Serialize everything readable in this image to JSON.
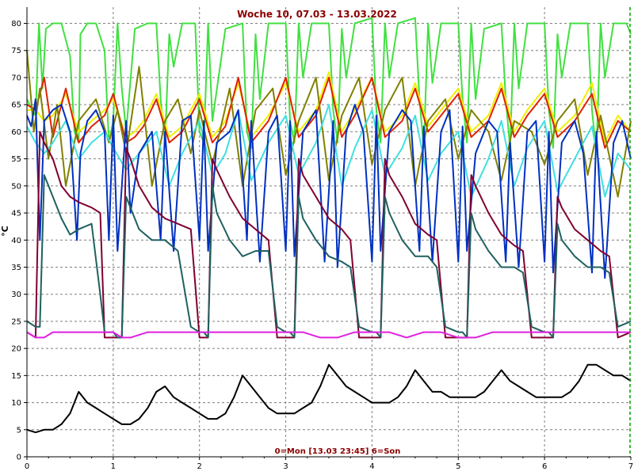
{
  "chart_data": {
    "type": "line",
    "title": "Woche 10, 07.03 - 13.03.2022",
    "footer": "0=Mon [13.03 23:45] 6=Son",
    "ylabel": "°C",
    "xlabel": "",
    "xlim": [
      0,
      7
    ],
    "ylim": [
      0,
      83
    ],
    "x_ticks": [
      "0",
      "1",
      "2",
      "3",
      "4",
      "5",
      "6",
      "7"
    ],
    "y_ticks": [
      "0",
      "5",
      "10",
      "15",
      "20",
      "25",
      "30",
      "35",
      "40",
      "45",
      "50",
      "55",
      "60",
      "65",
      "70",
      "75",
      "80"
    ],
    "grid": true,
    "colors": {
      "title": "#8b0000",
      "axis": "#000000",
      "grid": "#7f7f7f",
      "end_marker": "#00a000"
    },
    "series": [
      {
        "color": "#40e040",
        "x": [
          0,
          0.03,
          0.06,
          0.1,
          0.14,
          0.18,
          0.22,
          0.3,
          0.4,
          0.5,
          0.55,
          0.6,
          0.62,
          0.7,
          0.8,
          0.9,
          0.95,
          1.0,
          1.05,
          1.1,
          1.15,
          1.25,
          1.4,
          1.5,
          1.55,
          1.6,
          1.65,
          1.7,
          1.8,
          1.95,
          2.0,
          2.05,
          2.1,
          2.15,
          2.3,
          2.5,
          2.55,
          2.6,
          2.65,
          2.7,
          2.8,
          3.0,
          3.05,
          3.1,
          3.15,
          3.2,
          3.3,
          3.5,
          3.55,
          3.6,
          3.65,
          3.7,
          3.8,
          4.0,
          4.05,
          4.1,
          4.15,
          4.2,
          4.3,
          4.5,
          4.55,
          4.6,
          4.65,
          4.7,
          4.8,
          5.0,
          5.05,
          5.1,
          5.15,
          5.2,
          5.3,
          5.5,
          5.55,
          5.6,
          5.65,
          5.7,
          5.8,
          6.0,
          6.05,
          6.1,
          6.15,
          6.2,
          6.3,
          6.5,
          6.55,
          6.6,
          6.65,
          6.7,
          6.8,
          6.95,
          7.0
        ],
        "y": [
          66,
          65,
          64,
          63,
          80,
          68,
          79,
          80,
          80,
          74,
          60,
          58,
          78,
          80,
          80,
          75,
          58,
          62,
          80,
          68,
          60,
          79,
          80,
          80,
          66,
          58,
          78,
          72,
          80,
          80,
          60,
          58,
          80,
          62,
          79,
          80,
          60,
          57,
          78,
          66,
          80,
          80,
          62,
          58,
          80,
          70,
          80,
          80,
          64,
          58,
          79,
          70,
          80,
          81,
          64,
          58,
          80,
          70,
          80,
          81,
          66,
          57,
          80,
          69,
          80,
          80,
          66,
          58,
          80,
          66,
          79,
          80,
          66,
          57,
          80,
          68,
          80,
          80,
          64,
          57,
          78,
          70,
          80,
          80,
          64,
          56,
          80,
          70,
          80,
          80,
          78
        ]
      },
      {
        "color": "#f0f000",
        "x": [
          0,
          0.1,
          0.2,
          0.3,
          0.45,
          0.6,
          0.75,
          0.9,
          1.0,
          1.15,
          1.25,
          1.35,
          1.5,
          1.65,
          1.8,
          2.0,
          2.15,
          2.3,
          2.45,
          2.6,
          2.8,
          3.0,
          3.15,
          3.35,
          3.5,
          3.65,
          3.8,
          4.0,
          4.15,
          4.35,
          4.5,
          4.65,
          4.8,
          5.0,
          5.15,
          5.35,
          5.5,
          5.65,
          5.8,
          6.0,
          6.15,
          6.35,
          6.55,
          6.7,
          6.85,
          7.0
        ],
        "y": [
          64,
          64,
          62,
          63,
          67,
          60,
          62,
          64,
          66,
          59,
          60,
          62,
          67,
          59,
          61,
          67,
          59,
          62,
          69,
          59,
          63,
          69,
          60,
          64,
          71,
          60,
          64,
          70,
          60,
          63,
          69,
          61,
          64,
          68,
          60,
          63,
          69,
          60,
          64,
          68,
          60,
          63,
          69,
          58,
          63,
          60
        ]
      },
      {
        "color": "#e02000",
        "x": [
          0,
          0.1,
          0.2,
          0.3,
          0.45,
          0.6,
          0.75,
          0.9,
          1.0,
          1.15,
          1.25,
          1.35,
          1.5,
          1.65,
          1.8,
          2.0,
          2.15,
          2.3,
          2.45,
          2.6,
          2.8,
          3.0,
          3.15,
          3.35,
          3.5,
          3.65,
          3.8,
          4.0,
          4.15,
          4.35,
          4.5,
          4.65,
          4.8,
          5.0,
          5.15,
          5.35,
          5.5,
          5.65,
          5.8,
          6.0,
          6.15,
          6.35,
          6.55,
          6.7,
          6.85,
          7.0
        ],
        "y": [
          65,
          64,
          70,
          59,
          68,
          58,
          61,
          63,
          67,
          58,
          59,
          61,
          66,
          58,
          60,
          66,
          58,
          61,
          70,
          58,
          62,
          70,
          59,
          63,
          70,
          59,
          63,
          70,
          59,
          62,
          68,
          60,
          63,
          67,
          59,
          62,
          68,
          59,
          63,
          67,
          59,
          62,
          67,
          57,
          62,
          60
        ]
      },
      {
        "color": "#808000",
        "x": [
          0,
          0.08,
          0.15,
          0.25,
          0.35,
          0.45,
          0.6,
          0.8,
          0.95,
          1.05,
          1.15,
          1.3,
          1.45,
          1.6,
          1.75,
          1.9,
          2.0,
          2.15,
          2.35,
          2.5,
          2.65,
          2.85,
          3.0,
          3.15,
          3.35,
          3.5,
          3.65,
          3.85,
          4.0,
          4.15,
          4.35,
          4.5,
          4.65,
          4.85,
          5.0,
          5.15,
          5.35,
          5.5,
          5.65,
          5.85,
          6.0,
          6.15,
          6.35,
          6.5,
          6.65,
          6.85,
          7.0
        ],
        "y": [
          75,
          60,
          68,
          55,
          65,
          50,
          62,
          66,
          58,
          64,
          56,
          72,
          50,
          62,
          66,
          56,
          64,
          54,
          68,
          50,
          64,
          68,
          52,
          62,
          70,
          51,
          63,
          70,
          54,
          64,
          70,
          50,
          62,
          66,
          55,
          64,
          60,
          51,
          62,
          60,
          54,
          62,
          66,
          52,
          63,
          48,
          62
        ]
      },
      {
        "color": "#40e0e0",
        "x": [
          0,
          0.1,
          0.2,
          0.3,
          0.45,
          0.6,
          0.75,
          0.9,
          1.0,
          1.15,
          1.25,
          1.35,
          1.5,
          1.65,
          1.8,
          2.0,
          2.15,
          2.3,
          2.45,
          2.6,
          2.8,
          3.0,
          3.15,
          3.35,
          3.5,
          3.65,
          3.8,
          4.0,
          4.15,
          4.35,
          4.5,
          4.65,
          4.8,
          5.0,
          5.15,
          5.35,
          5.5,
          5.65,
          5.8,
          6.0,
          6.15,
          6.35,
          6.55,
          6.7,
          6.85,
          7.0
        ],
        "y": [
          61,
          58,
          56,
          58,
          62,
          55,
          58,
          60,
          57,
          53,
          55,
          57,
          60,
          50,
          56,
          62,
          52,
          56,
          64,
          51,
          58,
          63,
          52,
          58,
          65,
          50,
          57,
          64,
          52,
          57,
          63,
          51,
          56,
          60,
          48,
          55,
          62,
          50,
          57,
          62,
          49,
          55,
          61,
          48,
          56,
          53
        ]
      },
      {
        "color": "#0030c0",
        "x": [
          0,
          0.05,
          0.1,
          0.15,
          0.2,
          0.3,
          0.4,
          0.5,
          0.58,
          0.62,
          0.7,
          0.8,
          0.9,
          0.95,
          1.0,
          1.05,
          1.15,
          1.2,
          1.3,
          1.45,
          1.55,
          1.6,
          1.7,
          1.8,
          1.9,
          2.0,
          2.05,
          2.1,
          2.2,
          2.35,
          2.45,
          2.55,
          2.6,
          2.7,
          2.8,
          2.9,
          3.0,
          3.05,
          3.1,
          3.2,
          3.35,
          3.45,
          3.55,
          3.6,
          3.7,
          3.8,
          3.9,
          4.0,
          4.05,
          4.1,
          4.2,
          4.35,
          4.45,
          4.55,
          4.6,
          4.7,
          4.8,
          4.9,
          5.0,
          5.05,
          5.1,
          5.2,
          5.35,
          5.45,
          5.55,
          5.6,
          5.7,
          5.8,
          5.9,
          6.0,
          6.05,
          6.1,
          6.2,
          6.35,
          6.45,
          6.55,
          6.6,
          6.7,
          6.8,
          6.9,
          7.0
        ],
        "y": [
          63,
          61,
          66,
          40,
          62,
          64,
          65,
          60,
          40,
          56,
          62,
          64,
          60,
          40,
          63,
          38,
          62,
          45,
          56,
          60,
          40,
          60,
          38,
          62,
          63,
          40,
          62,
          38,
          58,
          60,
          64,
          40,
          62,
          36,
          60,
          63,
          38,
          62,
          37,
          60,
          64,
          36,
          62,
          35,
          60,
          65,
          60,
          36,
          63,
          38,
          60,
          64,
          62,
          38,
          61,
          36,
          60,
          64,
          36,
          61,
          38,
          56,
          62,
          60,
          36,
          58,
          35,
          60,
          62,
          36,
          60,
          34,
          58,
          62,
          56,
          34,
          60,
          33,
          58,
          62,
          55
        ]
      },
      {
        "color": "#800030",
        "x": [
          0,
          0.1,
          0.15,
          0.2,
          0.3,
          0.4,
          0.5,
          0.6,
          0.75,
          0.85,
          0.9,
          1.0,
          1.05,
          1.1,
          1.15,
          1.2,
          1.3,
          1.45,
          1.6,
          1.75,
          1.9,
          2.0,
          2.05,
          2.1,
          2.15,
          2.2,
          2.35,
          2.5,
          2.65,
          2.8,
          2.9,
          3.0,
          3.05,
          3.1,
          3.15,
          3.2,
          3.35,
          3.5,
          3.65,
          3.75,
          3.85,
          4.0,
          4.05,
          4.1,
          4.15,
          4.2,
          4.35,
          4.5,
          4.65,
          4.75,
          4.85,
          5.0,
          5.05,
          5.1,
          5.15,
          5.2,
          5.35,
          5.5,
          5.65,
          5.75,
          5.85,
          6.0,
          6.05,
          6.1,
          6.15,
          6.2,
          6.35,
          6.5,
          6.65,
          6.75,
          6.85,
          7.0
        ],
        "y": [
          23,
          22,
          60,
          58,
          55,
          50,
          48,
          47,
          46,
          45,
          22,
          22,
          22,
          22,
          57,
          55,
          50,
          46,
          44,
          43,
          42,
          22,
          22,
          22,
          55,
          53,
          48,
          44,
          42,
          40,
          22,
          22,
          22,
          22,
          55,
          52,
          48,
          44,
          42,
          40,
          22,
          22,
          22,
          22,
          55,
          52,
          48,
          43,
          41,
          40,
          22,
          22,
          22,
          22,
          52,
          50,
          45,
          41,
          39,
          38,
          22,
          22,
          22,
          22,
          48,
          46,
          42,
          40,
          38,
          37,
          22,
          23
        ]
      },
      {
        "color": "#206060",
        "x": [
          0,
          0.1,
          0.15,
          0.2,
          0.3,
          0.4,
          0.5,
          0.6,
          0.75,
          0.85,
          0.9,
          1.0,
          1.05,
          1.1,
          1.15,
          1.2,
          1.3,
          1.45,
          1.6,
          1.75,
          1.9,
          2.0,
          2.05,
          2.1,
          2.15,
          2.2,
          2.35,
          2.5,
          2.65,
          2.8,
          2.9,
          3.0,
          3.05,
          3.1,
          3.15,
          3.2,
          3.35,
          3.5,
          3.65,
          3.75,
          3.85,
          4.0,
          4.05,
          4.1,
          4.15,
          4.2,
          4.35,
          4.5,
          4.65,
          4.75,
          4.85,
          5.0,
          5.05,
          5.1,
          5.15,
          5.2,
          5.35,
          5.5,
          5.65,
          5.75,
          5.85,
          6.0,
          6.05,
          6.1,
          6.15,
          6.2,
          6.35,
          6.5,
          6.65,
          6.75,
          6.85,
          7.0
        ],
        "y": [
          25,
          24,
          24,
          52,
          48,
          44,
          41,
          42,
          43,
          30,
          23,
          23,
          22,
          22,
          48,
          46,
          42,
          40,
          40,
          38,
          24,
          23,
          23,
          22,
          50,
          45,
          40,
          37,
          38,
          38,
          24,
          23,
          23,
          22,
          48,
          44,
          40,
          37,
          36,
          35,
          24,
          23,
          23,
          22,
          48,
          45,
          40,
          37,
          37,
          35,
          24,
          23,
          23,
          22,
          45,
          42,
          38,
          35,
          35,
          34,
          24,
          23,
          23,
          22,
          43,
          40,
          37,
          35,
          35,
          34,
          24,
          25
        ]
      },
      {
        "color": "#e020e0",
        "x": [
          0,
          0.1,
          0.2,
          0.3,
          0.5,
          0.7,
          0.9,
          1.0,
          1.1,
          1.2,
          1.4,
          1.6,
          1.8,
          2.0,
          2.2,
          2.4,
          2.6,
          2.8,
          3.0,
          3.2,
          3.4,
          3.6,
          3.8,
          4.0,
          4.2,
          4.4,
          4.6,
          4.8,
          5.0,
          5.2,
          5.4,
          5.6,
          5.8,
          6.0,
          6.2,
          6.4,
          6.6,
          6.8,
          7.0
        ],
        "y": [
          23,
          22,
          22,
          23,
          23,
          23,
          23,
          23,
          22,
          22,
          23,
          23,
          23,
          23,
          23,
          23,
          23,
          23,
          23,
          23,
          22,
          22,
          23,
          23,
          23,
          22,
          23,
          23,
          22,
          22,
          23,
          23,
          23,
          23,
          23,
          23,
          23,
          23,
          23
        ]
      },
      {
        "color": "#000000",
        "x": [
          0,
          0.1,
          0.2,
          0.3,
          0.4,
          0.5,
          0.6,
          0.7,
          0.8,
          0.9,
          1.0,
          1.1,
          1.2,
          1.3,
          1.4,
          1.5,
          1.6,
          1.7,
          1.8,
          1.9,
          2.0,
          2.1,
          2.2,
          2.3,
          2.4,
          2.5,
          2.6,
          2.7,
          2.8,
          2.9,
          3.0,
          3.1,
          3.2,
          3.3,
          3.4,
          3.5,
          3.6,
          3.7,
          3.8,
          3.9,
          4.0,
          4.1,
          4.2,
          4.3,
          4.4,
          4.5,
          4.6,
          4.7,
          4.8,
          4.9,
          5.0,
          5.1,
          5.2,
          5.3,
          5.4,
          5.5,
          5.6,
          5.7,
          5.8,
          5.9,
          6.0,
          6.1,
          6.2,
          6.3,
          6.4,
          6.5,
          6.6,
          6.7,
          6.8,
          6.9,
          7.0
        ],
        "y": [
          5,
          4.5,
          5,
          5,
          6,
          8,
          12,
          10,
          9,
          8,
          7,
          6,
          6,
          7,
          9,
          12,
          13,
          11,
          10,
          9,
          8,
          7,
          7,
          8,
          11,
          15,
          13,
          11,
          9,
          8,
          8,
          8,
          9,
          10,
          13,
          17,
          15,
          13,
          12,
          11,
          10,
          10,
          10,
          11,
          13,
          16,
          14,
          12,
          12,
          11,
          11,
          11,
          11,
          12,
          14,
          16,
          14,
          13,
          12,
          11,
          11,
          11,
          11,
          12,
          14,
          17,
          17,
          16,
          15,
          15,
          14
        ]
      }
    ]
  }
}
